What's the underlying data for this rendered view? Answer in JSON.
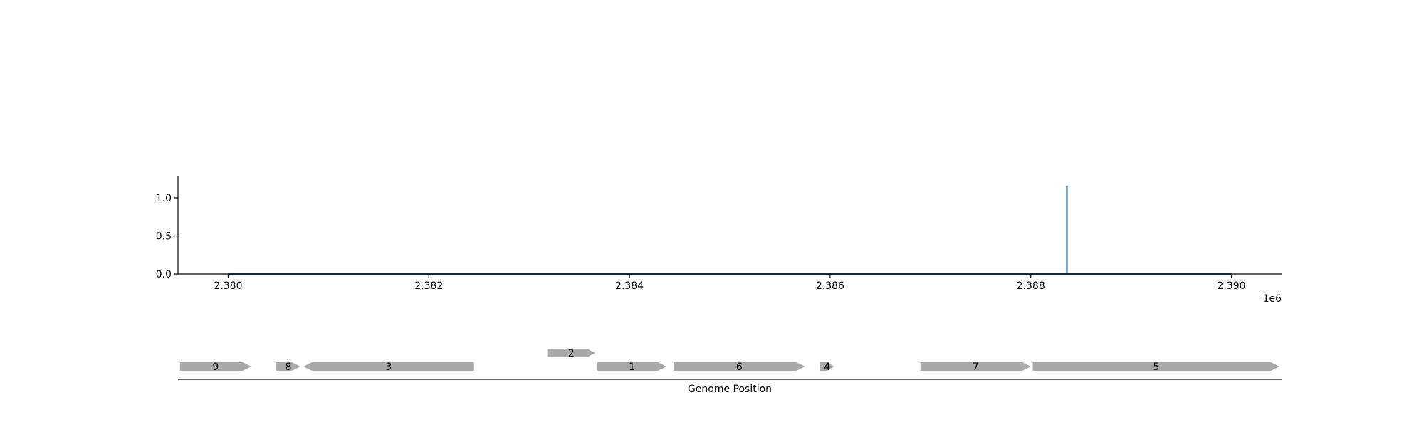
{
  "chart_data": {
    "type": "line",
    "title": "",
    "xlabel": "Genome Position",
    "ylabel": "",
    "x_offset_label": "1e6",
    "x_tick_values": [
      2380000,
      2382000,
      2384000,
      2386000,
      2388000,
      2390000
    ],
    "x_tick_labels": [
      "2.380",
      "2.382",
      "2.384",
      "2.386",
      "2.388",
      "2.390"
    ],
    "y_tick_values": [
      0.0,
      0.5,
      1.0
    ],
    "y_tick_labels": [
      "0.0",
      "0.5",
      "1.0"
    ],
    "xlim": [
      2379500,
      2390500
    ],
    "ylim": [
      0,
      1.28
    ],
    "grid": false,
    "colors": {
      "signal": "#1f6f9e",
      "gene": "#a9a9a9"
    },
    "series": [
      {
        "x": [
          2380000,
          2388360,
          2388360,
          2388360,
          2388360,
          2390000
        ],
        "y": [
          0,
          0,
          1.16,
          1.16,
          0,
          0
        ]
      }
    ],
    "genes": [
      {
        "label": "9",
        "start": 2379520,
        "end": 2380230,
        "strand": "+",
        "row": 0
      },
      {
        "label": "8",
        "start": 2380480,
        "end": 2380720,
        "strand": "+",
        "row": 0
      },
      {
        "label": "3",
        "start": 2380750,
        "end": 2382450,
        "strand": "-",
        "row": 0
      },
      {
        "label": "2",
        "start": 2383180,
        "end": 2383660,
        "strand": "+",
        "row": 1
      },
      {
        "label": "1",
        "start": 2383680,
        "end": 2384370,
        "strand": "+",
        "row": 0
      },
      {
        "label": "6",
        "start": 2384440,
        "end": 2385750,
        "strand": "+",
        "row": 0
      },
      {
        "label": "4",
        "start": 2385900,
        "end": 2386040,
        "strand": "+",
        "row": 0
      },
      {
        "label": "7",
        "start": 2386900,
        "end": 2388000,
        "strand": "+",
        "row": 0
      },
      {
        "label": "5",
        "start": 2388020,
        "end": 2390480,
        "strand": "+",
        "row": 0
      }
    ]
  }
}
